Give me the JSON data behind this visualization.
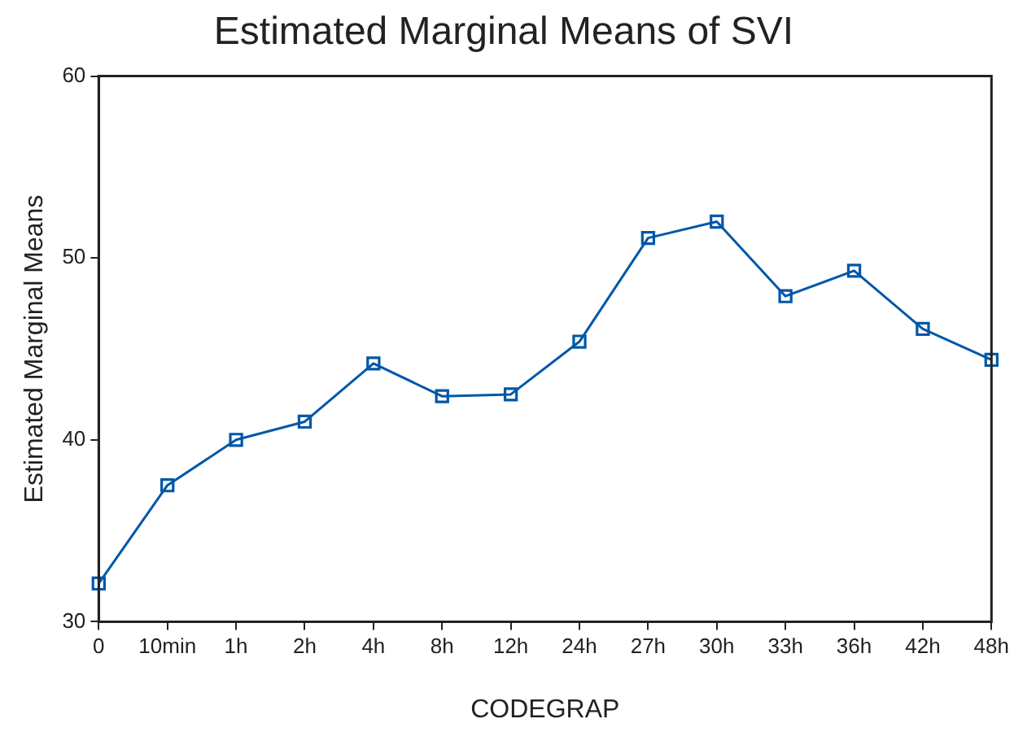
{
  "chart_data": {
    "type": "line",
    "title": "Estimated Marginal Means of SVI",
    "xlabel": "CODEGRAP",
    "ylabel": "Estimated Marginal Means",
    "categories": [
      "0",
      "10min",
      "1h",
      "2h",
      "4h",
      "8h",
      "12h",
      "24h",
      "27h",
      "30h",
      "33h",
      "36h",
      "42h",
      "48h"
    ],
    "series": [
      {
        "color": "#0057a8",
        "values": [
          32.1,
          37.5,
          40.0,
          41.0,
          44.2,
          42.4,
          42.5,
          45.4,
          51.1,
          52.0,
          47.9,
          49.3,
          46.1,
          44.4
        ]
      }
    ],
    "ylim": [
      30,
      60
    ],
    "yticks": [
      30,
      40,
      50,
      60
    ],
    "grid": false,
    "legend": false,
    "marker": "square",
    "line_style": "solid"
  }
}
